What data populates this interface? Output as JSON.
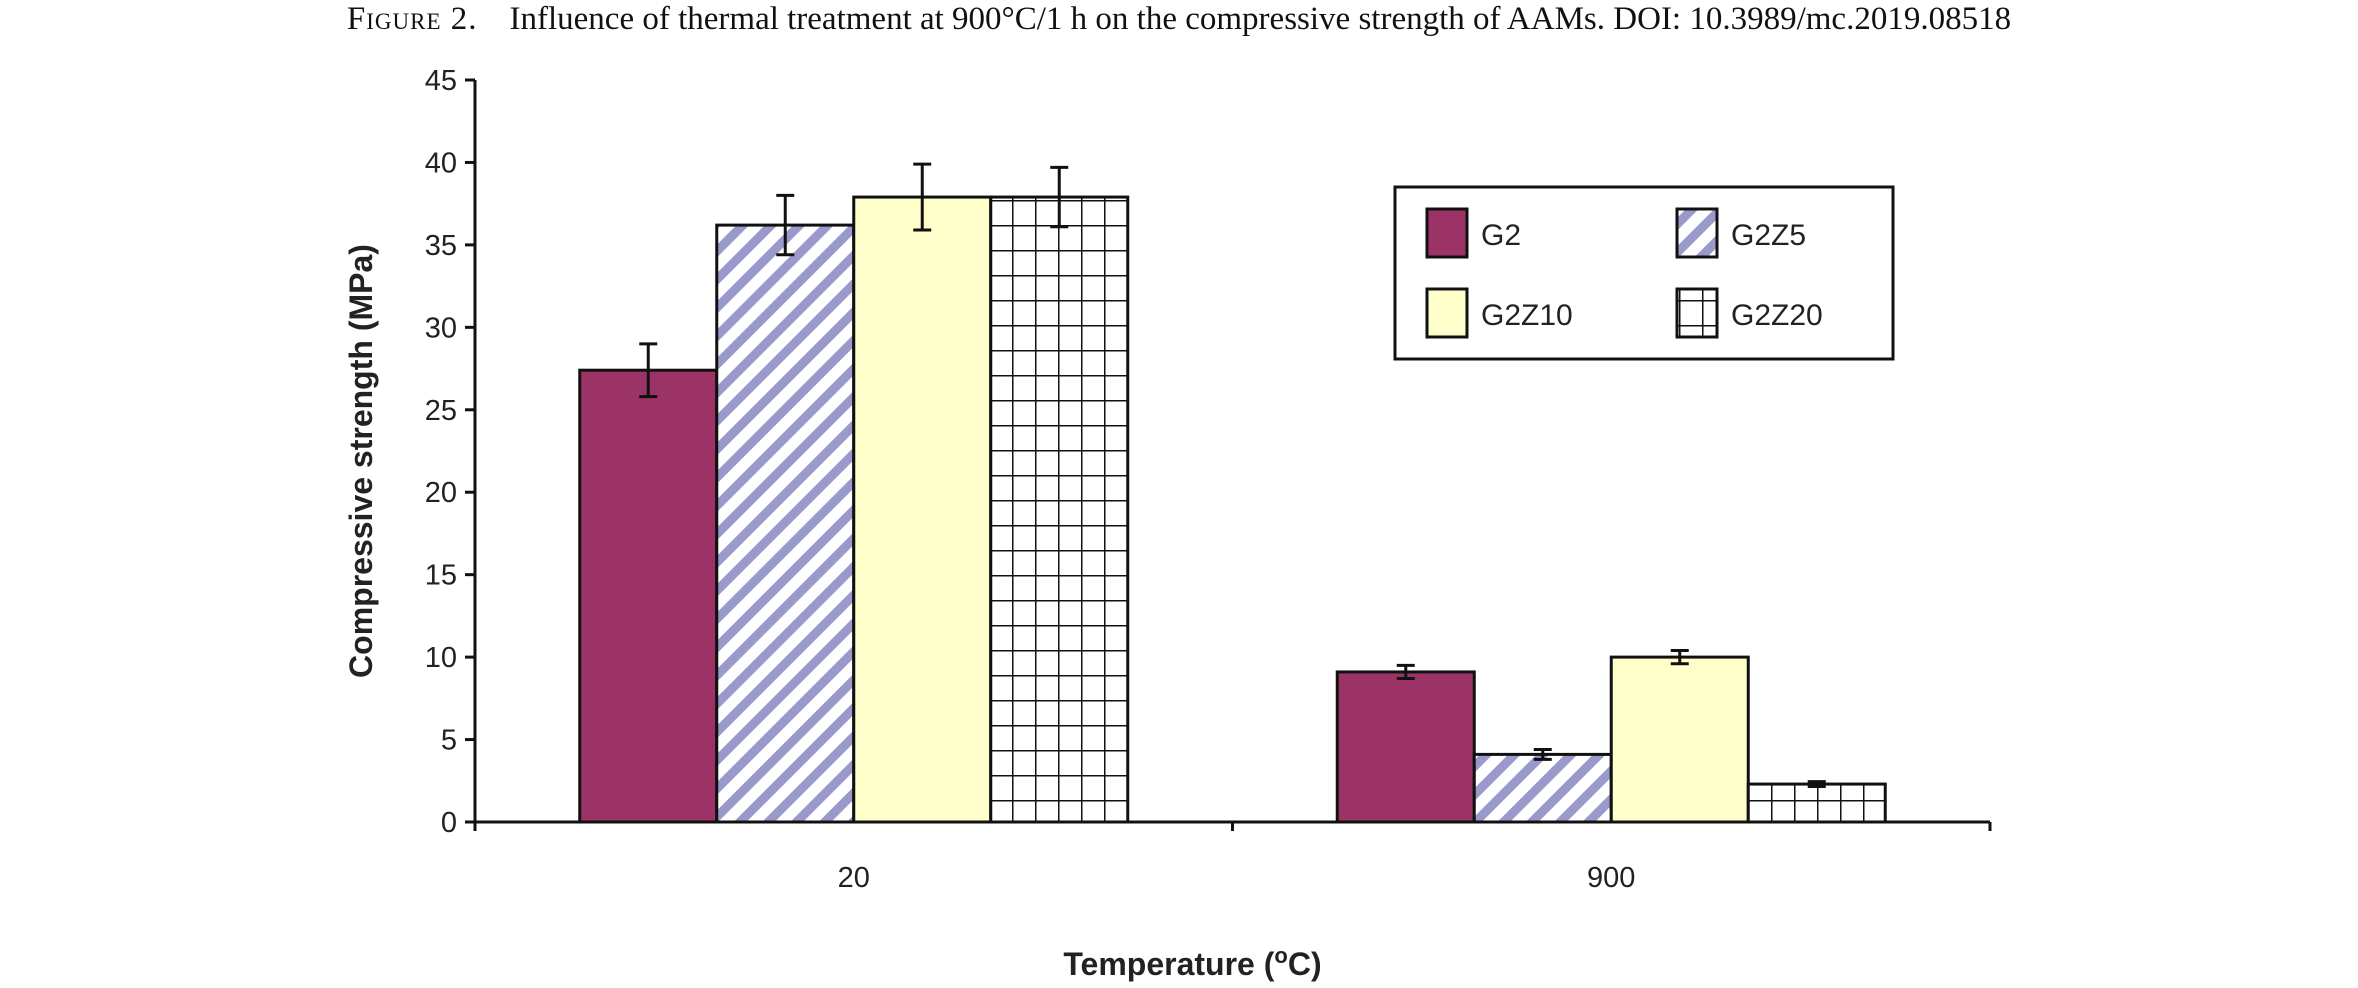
{
  "caption": {
    "label": "Figure 2.",
    "text": "Influence of thermal treatment at 900°C/1 h on the compressive strength of AAMs. DOI: 10.3989/mc.2019.08518"
  },
  "chart_data": {
    "type": "bar",
    "categories": [
      "20",
      "900"
    ],
    "series": [
      {
        "name": "G2",
        "values": [
          27.4,
          9.1
        ],
        "errors": [
          1.6,
          0.4
        ],
        "color": "#9b3366",
        "pattern": "solid"
      },
      {
        "name": "G2Z5",
        "values": [
          36.2,
          4.1
        ],
        "errors": [
          1.8,
          0.3
        ],
        "color": "#9999cc",
        "pattern": "diagonal"
      },
      {
        "name": "G2Z10",
        "values": [
          37.9,
          10.0
        ],
        "errors": [
          2.0,
          0.4
        ],
        "color": "#ffffcc",
        "pattern": "solid"
      },
      {
        "name": "G2Z20",
        "values": [
          37.9,
          2.3
        ],
        "errors": [
          1.8,
          0.15
        ],
        "color": "#ffffff",
        "pattern": "grid"
      }
    ],
    "xlabel": "Temperature (°C)",
    "ylabel": "Compressive strength  (MPa)",
    "ylim": [
      0,
      45
    ],
    "yticks": [
      0,
      5,
      10,
      15,
      20,
      25,
      30,
      35,
      40,
      45
    ],
    "grid": false,
    "legend_position": "top-right"
  }
}
